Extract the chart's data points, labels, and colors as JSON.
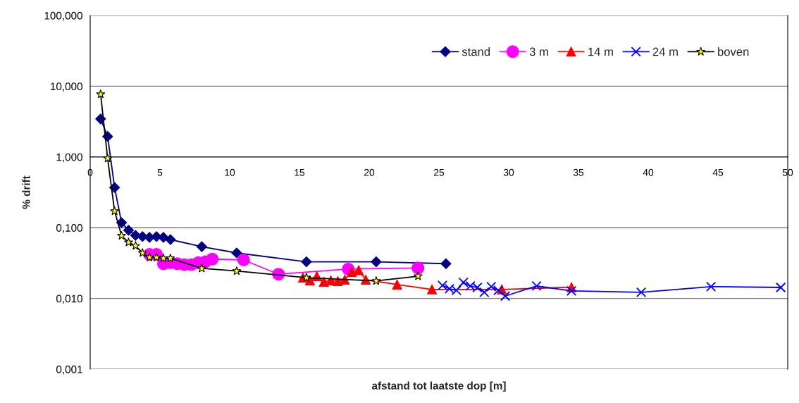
{
  "chart_data": {
    "type": "line",
    "xlabel": "afstand tot laatste dop [m]",
    "ylabel": "% drift",
    "log": "y",
    "xlim": [
      0,
      50
    ],
    "xticks": [
      0,
      5,
      10,
      15,
      20,
      25,
      30,
      35,
      40,
      45,
      50
    ],
    "ylim": [
      0.001,
      100
    ],
    "yticks": [
      {
        "value": 0.001,
        "label": "0,001"
      },
      {
        "value": 0.01,
        "label": "0,010"
      },
      {
        "value": 0.1,
        "label": "0,100"
      },
      {
        "value": 1,
        "label": "1,000"
      },
      {
        "value": 10,
        "label": "10,000"
      },
      {
        "value": 100,
        "label": "100,000"
      }
    ],
    "grid": "y",
    "legend": "top right",
    "line_style": "solid",
    "series": [
      {
        "name": "stand",
        "color": "#000080",
        "marker": "diamond",
        "x": [
          0.75,
          1.25,
          1.75,
          2.25,
          2.75,
          3.25,
          3.75,
          4.25,
          4.75,
          5.25,
          5.75,
          8,
          10.5,
          15.5,
          20.5,
          25.5
        ],
        "values": [
          3.45,
          1.95,
          0.37,
          0.118,
          0.092,
          0.078,
          0.075,
          0.073,
          0.075,
          0.073,
          0.068,
          0.054,
          0.044,
          0.033,
          0.033,
          0.031
        ]
      },
      {
        "name": "3 m",
        "color": "#ff00ff",
        "marker": "circle",
        "x": [
          4.25,
          4.75,
          5.25,
          5.75,
          6.25,
          6.75,
          7.25,
          7.75,
          8.25,
          8.75,
          11,
          13.5,
          18.5,
          23.5
        ],
        "values": [
          0.042,
          0.042,
          0.031,
          0.032,
          0.031,
          0.03,
          0.03,
          0.032,
          0.033,
          0.036,
          0.035,
          0.022,
          0.026,
          0.027
        ]
      },
      {
        "name": "14 m",
        "color": "#ff0000",
        "marker": "triangle",
        "x": [
          15.25,
          15.75,
          16.25,
          16.75,
          17.25,
          17.75,
          18.25,
          18.75,
          19.25,
          19.75,
          22,
          24.5,
          29.5,
          34.5
        ],
        "values": [
          0.0197,
          0.018,
          0.0206,
          0.0172,
          0.018,
          0.0176,
          0.0184,
          0.0237,
          0.025,
          0.0184,
          0.0157,
          0.0134,
          0.0134,
          0.0144
        ]
      },
      {
        "name": "24 m",
        "color": "#0000ff",
        "marker": "cross",
        "x": [
          25.25,
          25.75,
          26.25,
          26.75,
          27.25,
          27.75,
          28.25,
          28.75,
          29.25,
          29.75,
          32,
          34.5,
          39.5,
          44.5,
          49.5
        ],
        "values": [
          0.0153,
          0.0137,
          0.013,
          0.0168,
          0.015,
          0.0143,
          0.0122,
          0.0147,
          0.013,
          0.0108,
          0.015,
          0.0128,
          0.0122,
          0.0147,
          0.0143
        ]
      },
      {
        "name": "boven",
        "color": "#000000",
        "marker": "star",
        "x": [
          0.75,
          1.25,
          1.75,
          2.25,
          2.75,
          3.25,
          3.75,
          4.25,
          4.75,
          5.25,
          5.75,
          8,
          10.5,
          15.5,
          20.5,
          23.5
        ],
        "values": [
          7.7,
          0.955,
          0.171,
          0.077,
          0.062,
          0.0555,
          0.044,
          0.038,
          0.038,
          0.037,
          0.037,
          0.0266,
          0.0244,
          0.0197,
          0.0177,
          0.0206
        ]
      }
    ]
  }
}
